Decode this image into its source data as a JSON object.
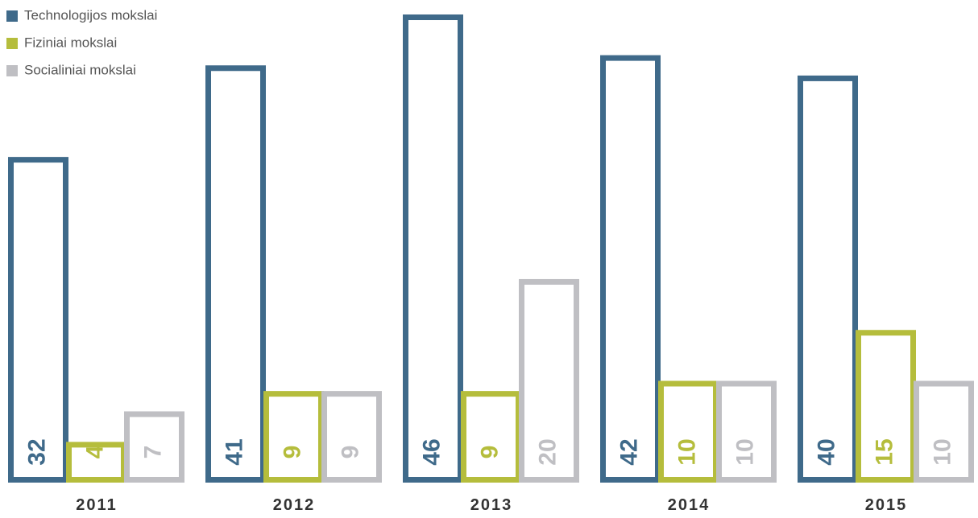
{
  "chart_data": {
    "type": "bar",
    "categories": [
      "2011",
      "2012",
      "2013",
      "2014",
      "2015"
    ],
    "series": [
      {
        "name": "Technologijos mokslai",
        "color": "#3f6a8a",
        "values": [
          32,
          41,
          46,
          42,
          40
        ]
      },
      {
        "name": "Fiziniai mokslai",
        "color": "#b5bd3c",
        "values": [
          4,
          9,
          9,
          10,
          15
        ]
      },
      {
        "name": "Socialiniai mokslai",
        "color": "#bfbfc3",
        "values": [
          7,
          9,
          20,
          10,
          10
        ]
      }
    ],
    "legend": "top-left"
  }
}
